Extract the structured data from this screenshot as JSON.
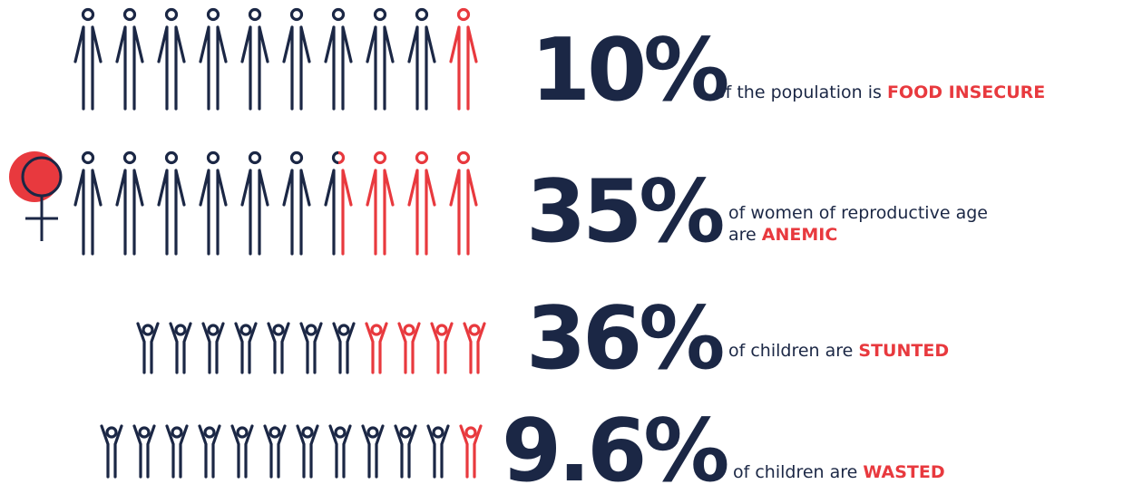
{
  "rows": [
    {
      "value": 10,
      "label": "10%",
      "text": [
        "of the population is"
      ],
      "highlight": "FOOD INSECURE"
    },
    {
      "value": 35,
      "label": "35%",
      "text": [
        "of women of reproductive age",
        "are"
      ],
      "highlight": "ANEMIC"
    },
    {
      "value": 36,
      "label": "36%",
      "text": [
        "of children are"
      ],
      "highlight": "STUNTED"
    },
    {
      "value": 9.6,
      "label": "9.6%",
      "text": [
        "of children are"
      ],
      "highlight": "WASTED"
    }
  ]
}
